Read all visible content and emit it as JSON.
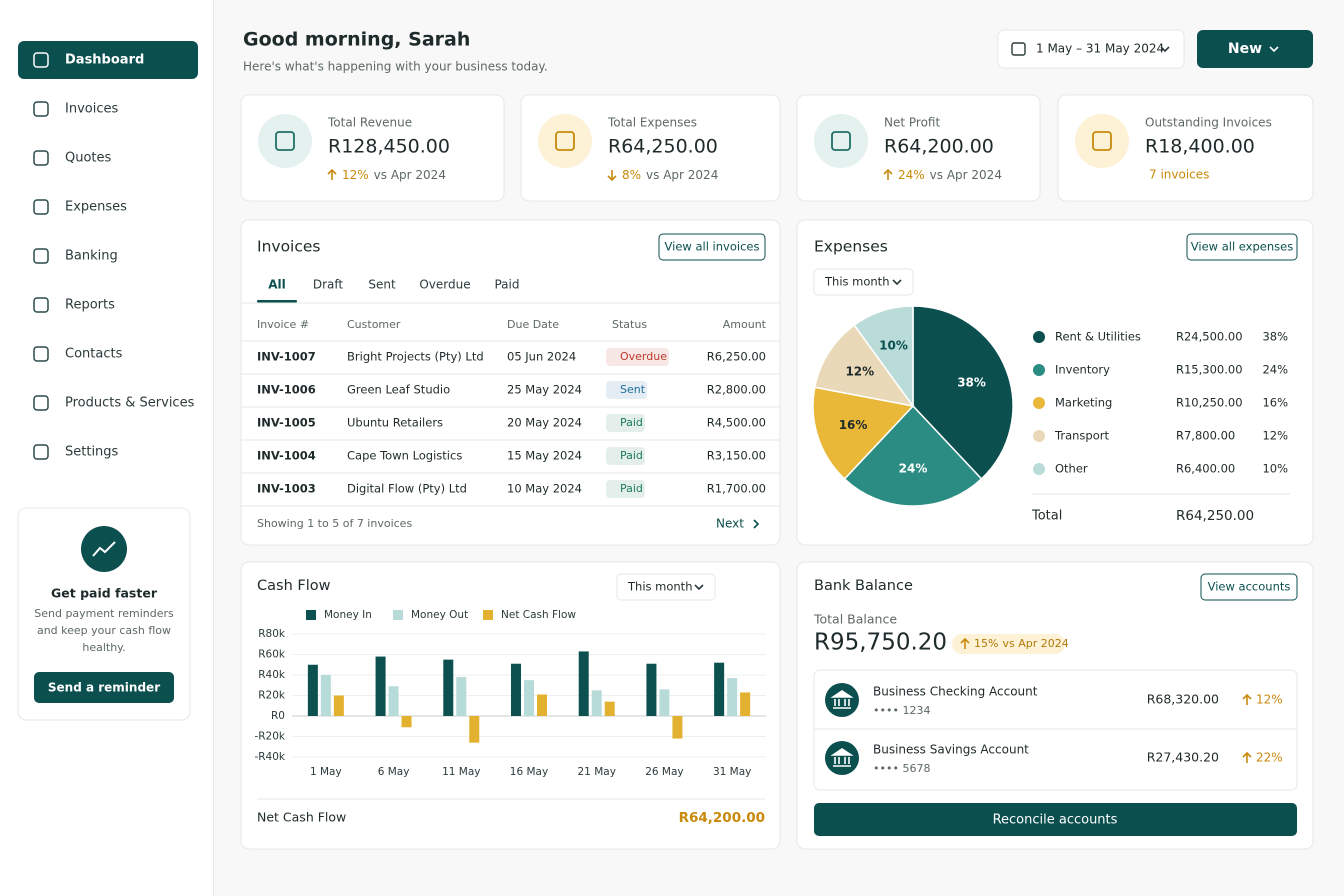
{
  "sidebar": {
    "nav": [
      "Dashboard",
      "Invoices",
      "Quotes",
      "Expenses",
      "Banking",
      "Reports",
      "Contacts",
      "Products & Services",
      "Settings"
    ],
    "active": 0,
    "promo": {
      "title": "Get paid faster",
      "text": [
        "Send payment reminders",
        "and keep your cash flow",
        "healthy."
      ],
      "button": "Send a reminder"
    }
  },
  "header": {
    "greeting": "Good morning, Sarah",
    "subtitle": "Here's what's happening with your business today.",
    "date_range": "1 May – 31 May 2024",
    "new_button": "New"
  },
  "kpis": [
    {
      "label": "Total Revenue",
      "value": "R128,450.00",
      "change": "12%",
      "trend": "up",
      "compare": "vs Apr 2024",
      "accent": "#1f6f66",
      "tint": "#e4f1ef"
    },
    {
      "label": "Total Expenses",
      "value": "R64,250.00",
      "change": "8%",
      "trend": "down",
      "compare": "vs Apr 2024",
      "accent": "#c98a0c",
      "tint": "#fdf1d6"
    },
    {
      "label": "Net Profit",
      "value": "R64,200.00",
      "change": "24%",
      "trend": "up",
      "compare": "vs Apr 2024",
      "accent": "#1f6f66",
      "tint": "#e4f1ef"
    },
    {
      "label": "Outstanding Invoices",
      "value": "R18,400.00",
      "note": "7 invoices",
      "accent": "#c98a0c",
      "tint": "#fdf1d6"
    }
  ],
  "invoices": {
    "title": "Invoices",
    "button": "View all invoices",
    "tabs": [
      "All",
      "Draft",
      "Sent",
      "Overdue",
      "Paid"
    ],
    "active_tab": 0,
    "columns": [
      "Invoice #",
      "Customer",
      "Due Date",
      "Status",
      "Amount"
    ],
    "rows": [
      [
        "INV-1007",
        "Bright Projects (Pty) Ltd",
        "05 Jun 2024",
        "Overdue",
        "R6,250.00"
      ],
      [
        "INV-1006",
        "Green Leaf Studio",
        "25 May 2024",
        "Sent",
        "R2,800.00"
      ],
      [
        "INV-1005",
        "Ubuntu Retailers",
        "20 May 2024",
        "Paid",
        "R4,500.00"
      ],
      [
        "INV-1004",
        "Cape Town Logistics",
        "15 May 2024",
        "Paid",
        "R3,150.00"
      ],
      [
        "INV-1003",
        "Digital Flow (Pty) Ltd",
        "10 May 2024",
        "Paid",
        "R1,700.00"
      ]
    ],
    "status_colors": [
      "#c0392b",
      "#1f6f9a",
      "#1d7a5e",
      "#1d7a5e",
      "#1d7a5e"
    ],
    "footer": "Showing 1 to 5 of 7 invoices",
    "next": "Next"
  },
  "expenses": {
    "title": "Expenses",
    "button": "View all expenses",
    "period": "This month",
    "amounts": [
      "R24,500.00",
      "R15,300.00",
      "R10,250.00",
      "R7,800.00",
      "R6,400.00"
    ],
    "total_label": "Total",
    "total": "R64,250.00"
  },
  "cash_flow": {
    "title": "Cash Flow",
    "period": "This month",
    "footer_label": "Net Cash Flow",
    "footer_value": "R64,200.00"
  },
  "bank": {
    "title": "Bank Balance",
    "button": "View accounts",
    "total_label": "Total Balance",
    "total": "R95,750.20",
    "change": "15%",
    "compare": "vs Apr 2024",
    "accounts": [
      {
        "name": "Business Checking Account",
        "number": "•••• 1234",
        "amount": "R68,320.00",
        "change": "12%"
      },
      {
        "name": "Business Savings Account",
        "number": "•••• 5678",
        "amount": "R27,430.20",
        "change": "22%"
      }
    ],
    "reconcile": "Reconcile accounts"
  },
  "chart_data": [
    {
      "type": "pie",
      "categories": [
        "Rent & Utilities",
        "Inventory",
        "Marketing",
        "Transport",
        "Other"
      ],
      "values": [
        38,
        24,
        16,
        12,
        10
      ],
      "value_labels": [
        "38%",
        "24%",
        "16%",
        "12%",
        "10%"
      ],
      "colors": [
        "#0b4f4f",
        "#2a8c82",
        "#e9b838",
        "#ead9b9",
        "#b9dcd9"
      ],
      "label_colors": [
        "#ffffff",
        "#ffffff",
        "#1f2a2a",
        "#1f2a2a",
        "#0b4f4f"
      ]
    },
    {
      "type": "bar",
      "categories": [
        "1 May",
        "6 May",
        "11 May",
        "16 May",
        "21 May",
        "26 May",
        "31 May"
      ],
      "series": [
        {
          "name": "Money In",
          "color": "#0d5050",
          "values": [
            50000,
            58000,
            55000,
            51000,
            63000,
            51000,
            52000
          ]
        },
        {
          "name": "Money Out",
          "color": "#b6dbd8",
          "values": [
            40000,
            29000,
            38000,
            35000,
            25000,
            26000,
            37000
          ]
        },
        {
          "name": "Net Cash Flow",
          "color": "#e3b130",
          "values": [
            20000,
            -11000,
            -26000,
            21000,
            14000,
            -22000,
            23000
          ]
        }
      ],
      "ylim": [
        -40000,
        80000
      ],
      "yticks": [
        {
          "value": 80000,
          "label": "R80k"
        },
        {
          "value": 60000,
          "label": "R60k"
        },
        {
          "value": 40000,
          "label": "R40k"
        },
        {
          "value": 20000,
          "label": "R20k"
        },
        {
          "value": 0,
          "label": "R0"
        },
        {
          "value": -20000,
          "label": "-R20k"
        },
        {
          "value": -40000,
          "label": "-R40k"
        }
      ],
      "grid": true,
      "legend": "top"
    }
  ]
}
